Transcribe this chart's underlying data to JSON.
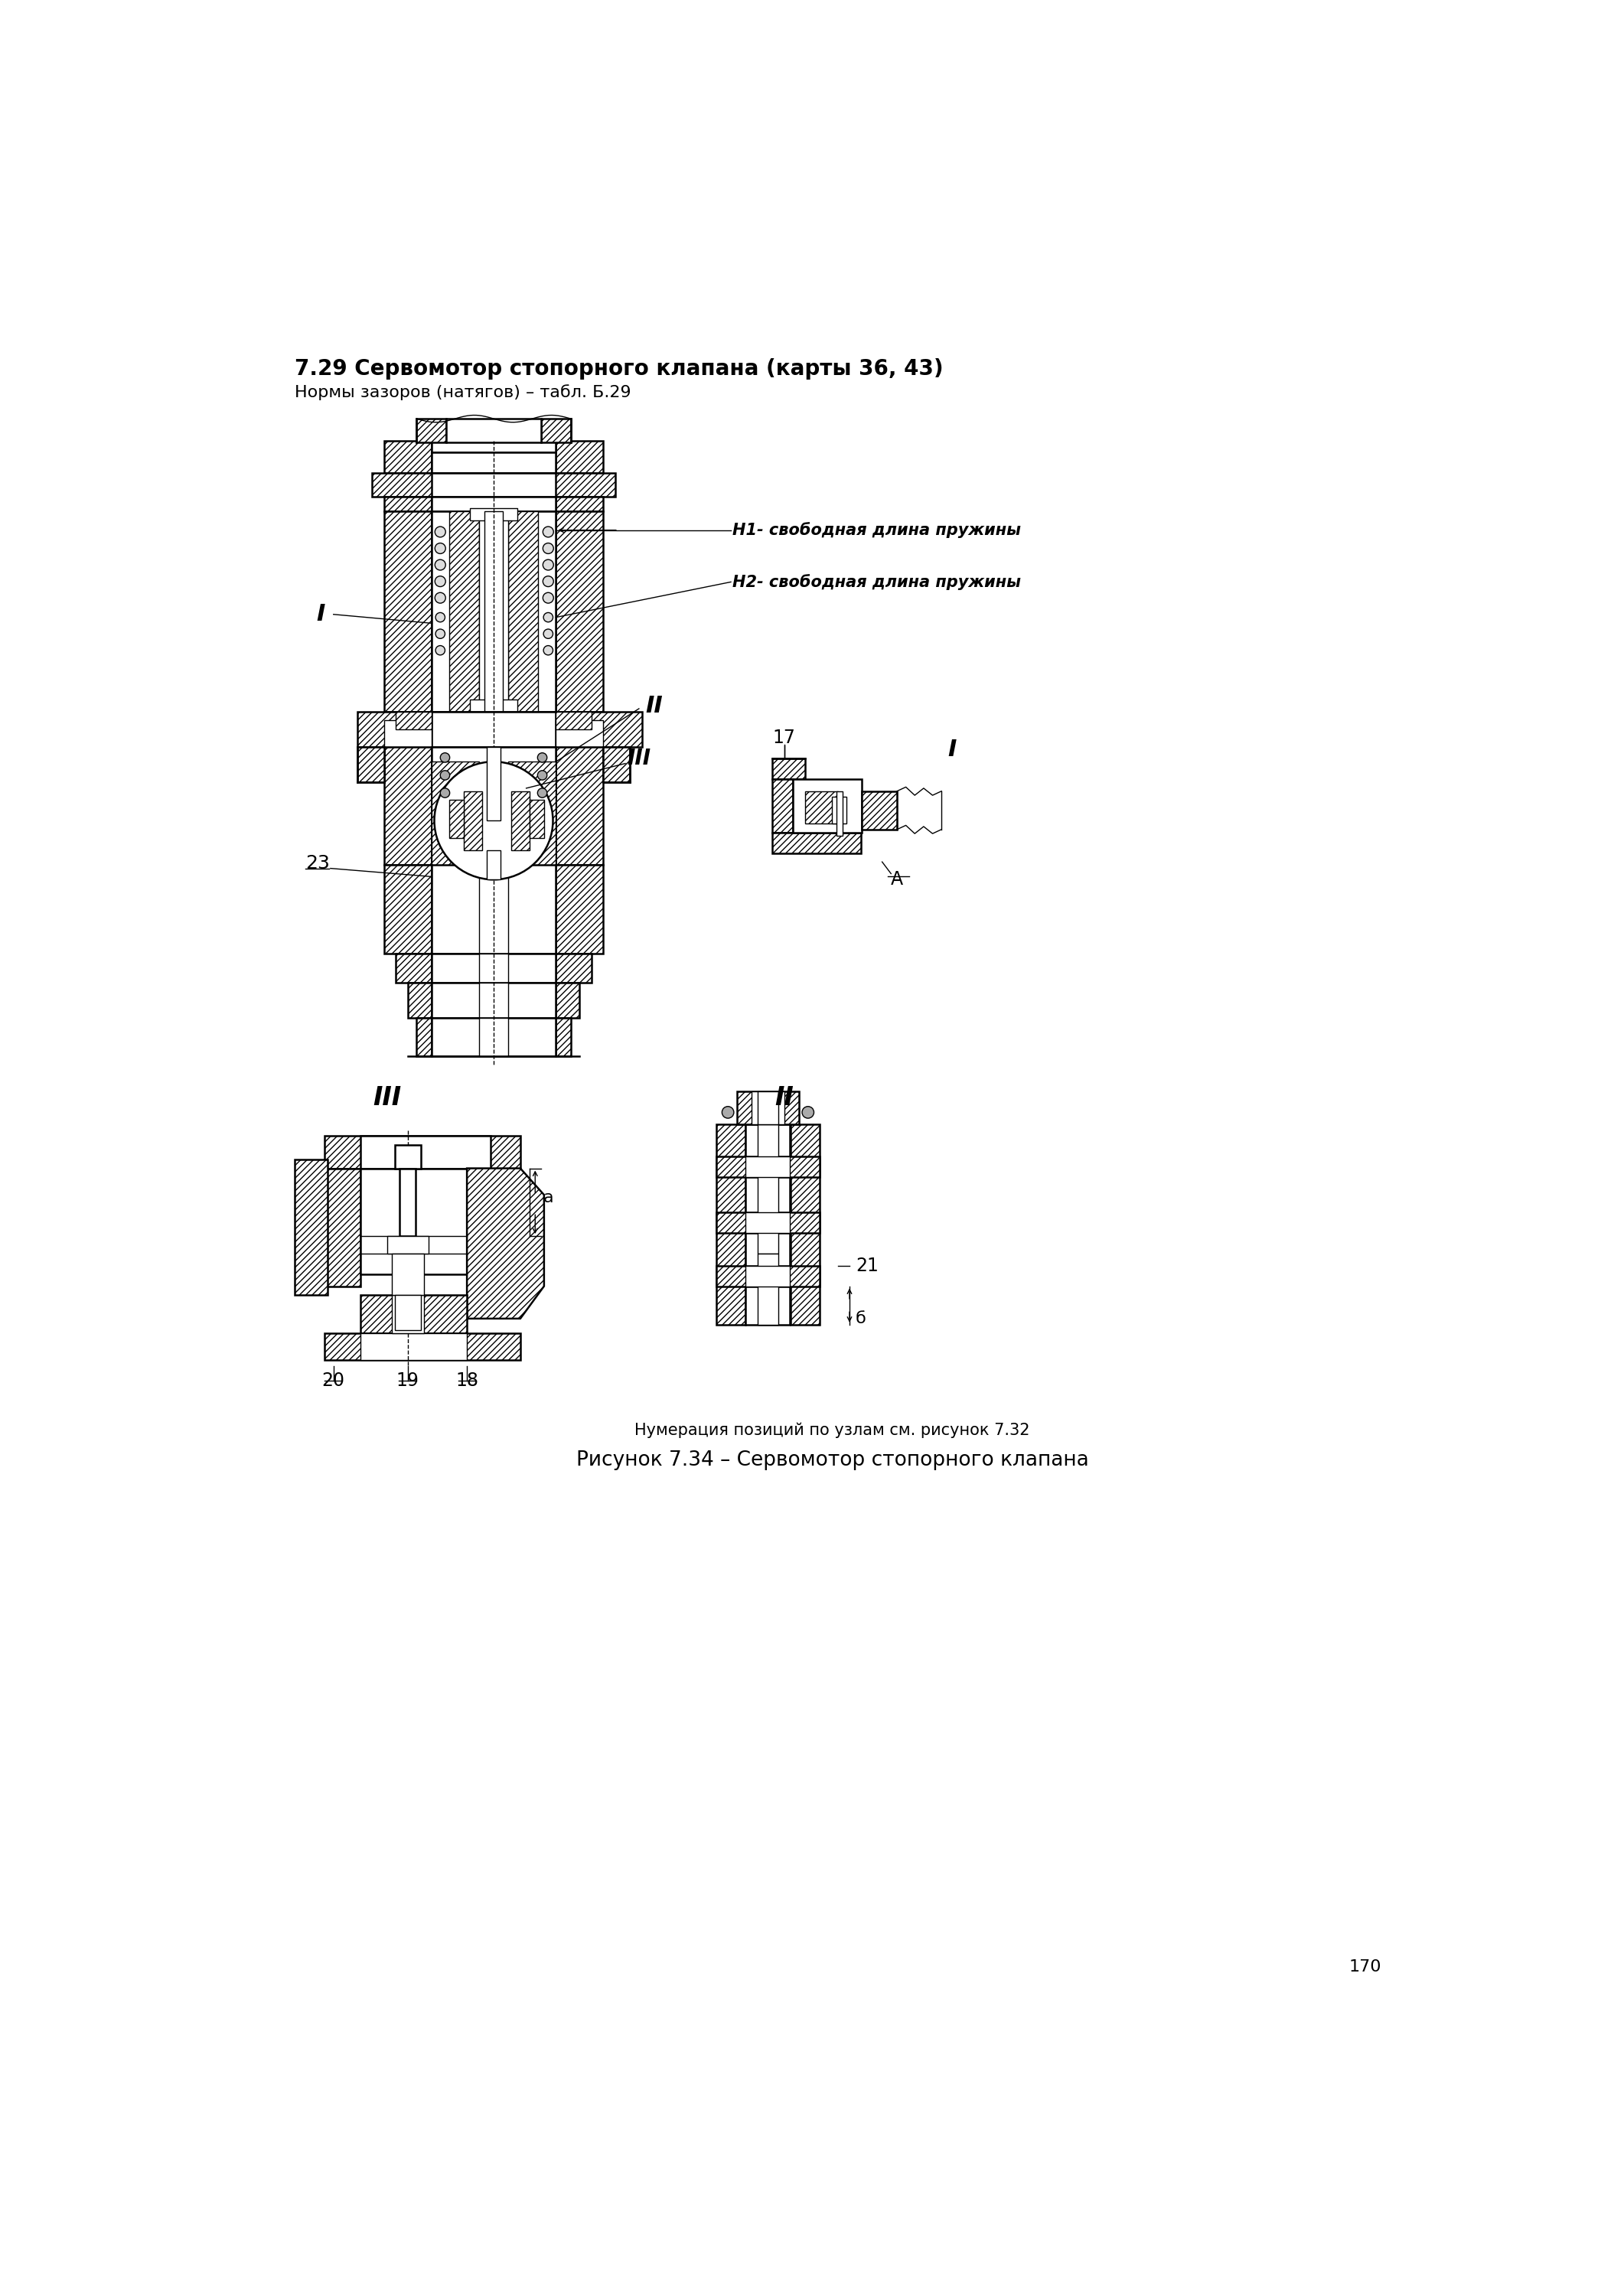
{
  "title_bold": "7.29 Сервомотор стопорного клапана (карты 36, 43)",
  "title_normal": "Нормы зазоров (натягов) – табл. Б.29",
  "caption_small": "Нумерация позиций по узлам см. рисунок 7.32",
  "caption_main": "Рисунок 7.34 – Сервомотор стопорного клапана",
  "page_number": "170",
  "bg_color": "#ffffff",
  "lc": "#000000",
  "label_H1": "Н1- свободная длина пружины",
  "label_H2": "Н2- свободная длина пружины",
  "label_I_main": "I",
  "label_II_main": "II",
  "label_III_main": "III",
  "label_23": "23",
  "label_17": "17",
  "label_I_right": "I",
  "label_II_bottom": "II",
  "label_III_bottom": "III",
  "label_A": "A",
  "label_a": "a",
  "label_b": "б",
  "label_20": "20",
  "label_19": "19",
  "label_18": "18",
  "label_21": "21"
}
